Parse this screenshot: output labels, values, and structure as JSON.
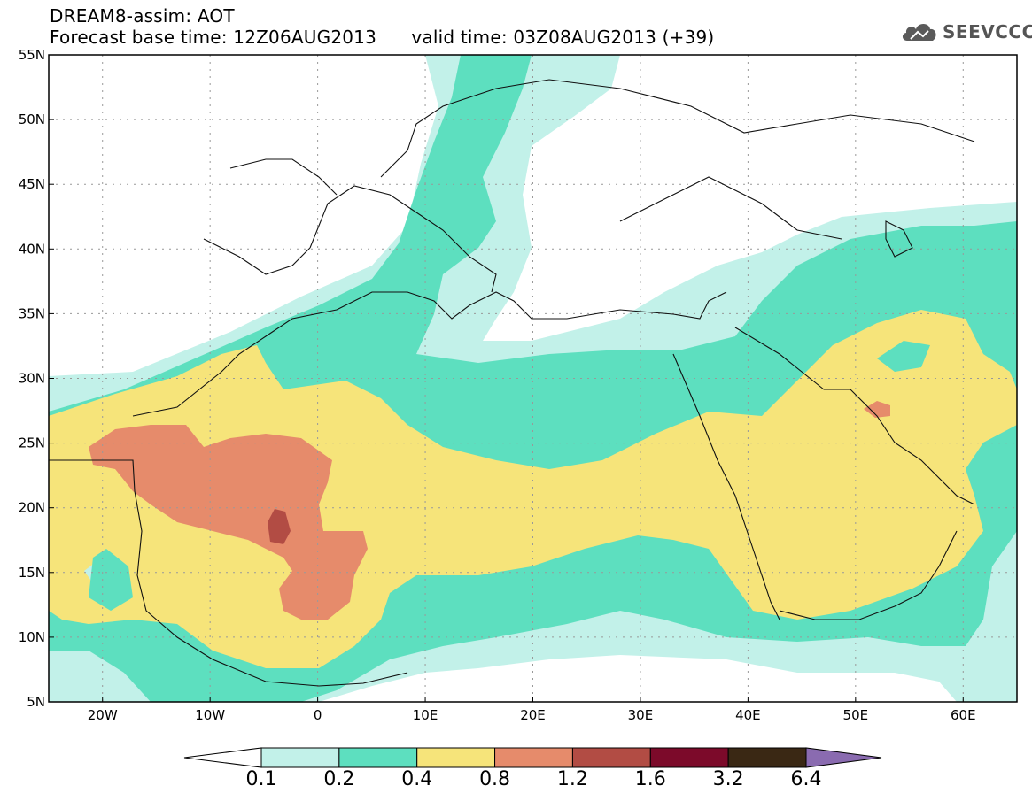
{
  "header": {
    "title": "DREAM8-assim: AOT",
    "forecast_line": "Forecast base time: 12Z06AUG2013",
    "valid_line": "valid time: 03Z08AUG2013 (+39)",
    "logo_text": "SEEVCCC"
  },
  "map": {
    "projection": "lat-lon",
    "lon_range": [
      -25,
      65
    ],
    "lat_range": [
      5,
      55
    ],
    "lon_ticks": [
      "20W",
      "10W",
      "0",
      "10E",
      "20E",
      "30E",
      "40E",
      "50E",
      "60E"
    ],
    "lat_ticks": [
      "55N",
      "50N",
      "45N",
      "40N",
      "35N",
      "30N",
      "25N",
      "20N",
      "15N",
      "10N",
      "5N"
    ],
    "grid": "dotted"
  },
  "colorbar": {
    "labels": [
      "0.1",
      "0.2",
      "0.4",
      "0.8",
      "1.2",
      "1.6",
      "3.2",
      "6.4"
    ],
    "colors": [
      "#c2f1e9",
      "#5ddfbf",
      "#f6e47a",
      "#e68b6b",
      "#b24c44",
      "#7c0a2a",
      "#3a2814"
    ],
    "over_color": "#8a6bb0",
    "under_color": "#ffffff"
  }
}
